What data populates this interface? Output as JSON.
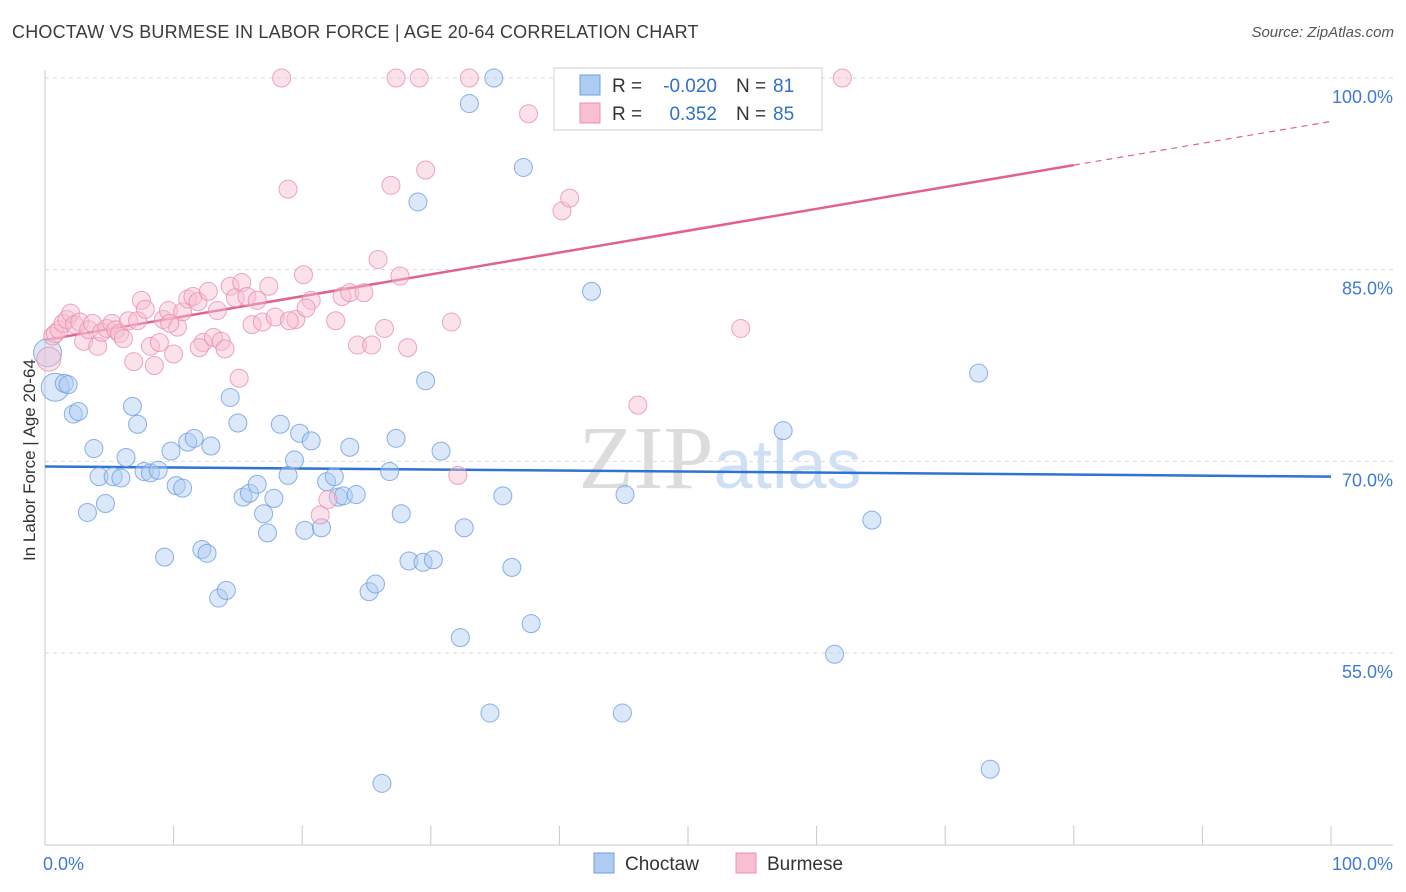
{
  "chart_data": {
    "type": "scatter",
    "title": "CHOCTAW VS BURMESE IN LABOR FORCE | AGE 20-64 CORRELATION CHART",
    "source": "Source: ZipAtlas.com",
    "xlabel": "",
    "ylabel": "In Labor Force | Age 20-64",
    "xlim": [
      0,
      100
    ],
    "ylim": [
      40,
      101
    ],
    "x_tick_labels": [
      "0.0%",
      "100.0%"
    ],
    "y_ticks": [
      55,
      70,
      85,
      100
    ],
    "y_tick_labels": [
      "55.0%",
      "70.0%",
      "85.0%",
      "100.0%"
    ],
    "watermark": "ZIPatlas",
    "legend": {
      "rows": [
        {
          "r_label": "R =",
          "r_value": "-0.020",
          "n_label": "N =",
          "n_value": "81"
        },
        {
          "r_label": "R =",
          "r_value": "0.352",
          "n_label": "N =",
          "n_value": "85"
        }
      ]
    },
    "series": [
      {
        "name": "Choctaw",
        "color": "#6f9ee0",
        "fill": "#aecbf2",
        "line_color": "#2f74d0",
        "trend": {
          "x0": 0,
          "y0": 69.6,
          "x1": 100,
          "y1": 68.8
        },
        "points": [
          [
            0.2,
            78.5
          ],
          [
            0.8,
            75.8
          ],
          [
            1.5,
            76.1
          ],
          [
            1.8,
            76.0
          ],
          [
            2.2,
            73.7
          ],
          [
            2.6,
            73.9
          ],
          [
            3.3,
            66.0
          ],
          [
            3.8,
            71.0
          ],
          [
            4.2,
            68.8
          ],
          [
            4.7,
            66.7
          ],
          [
            5.3,
            68.8
          ],
          [
            5.9,
            68.7
          ],
          [
            6.3,
            70.3
          ],
          [
            6.8,
            74.3
          ],
          [
            7.2,
            72.9
          ],
          [
            7.7,
            69.2
          ],
          [
            8.2,
            69.1
          ],
          [
            8.8,
            69.3
          ],
          [
            9.3,
            62.5
          ],
          [
            9.8,
            70.8
          ],
          [
            10.2,
            68.1
          ],
          [
            10.7,
            67.9
          ],
          [
            11.1,
            71.5
          ],
          [
            11.6,
            71.8
          ],
          [
            12.2,
            63.1
          ],
          [
            12.6,
            62.8
          ],
          [
            12.9,
            71.2
          ],
          [
            13.5,
            59.3
          ],
          [
            14.1,
            59.9
          ],
          [
            14.4,
            75.0
          ],
          [
            15.0,
            73.0
          ],
          [
            15.4,
            67.2
          ],
          [
            15.9,
            67.5
          ],
          [
            16.5,
            68.2
          ],
          [
            17.0,
            65.9
          ],
          [
            17.3,
            64.4
          ],
          [
            17.8,
            67.1
          ],
          [
            18.3,
            72.9
          ],
          [
            18.9,
            68.9
          ],
          [
            19.4,
            70.1
          ],
          [
            19.8,
            72.2
          ],
          [
            20.2,
            64.6
          ],
          [
            20.7,
            71.6
          ],
          [
            21.5,
            64.8
          ],
          [
            21.9,
            68.4
          ],
          [
            22.5,
            68.8
          ],
          [
            22.8,
            67.2
          ],
          [
            23.2,
            67.3
          ],
          [
            23.7,
            71.1
          ],
          [
            24.2,
            67.4
          ],
          [
            25.2,
            59.8
          ],
          [
            25.7,
            60.4
          ],
          [
            26.8,
            69.2
          ],
          [
            27.3,
            71.8
          ],
          [
            27.7,
            65.9
          ],
          [
            28.3,
            62.2
          ],
          [
            29.0,
            90.3
          ],
          [
            29.4,
            62.1
          ],
          [
            29.6,
            76.3
          ],
          [
            30.2,
            62.3
          ],
          [
            30.8,
            70.8
          ],
          [
            32.3,
            56.2
          ],
          [
            32.6,
            64.8
          ],
          [
            33.0,
            98.0
          ],
          [
            34.6,
            50.3
          ],
          [
            34.9,
            100.0
          ],
          [
            35.6,
            67.3
          ],
          [
            36.3,
            61.7
          ],
          [
            37.2,
            93.0
          ],
          [
            37.8,
            57.3
          ],
          [
            42.5,
            83.3
          ],
          [
            44.9,
            50.3
          ],
          [
            45.1,
            67.4
          ],
          [
            52.6,
            100.0
          ],
          [
            56.6,
            100.0
          ],
          [
            57.4,
            72.4
          ],
          [
            61.4,
            54.9
          ],
          [
            64.3,
            65.4
          ],
          [
            72.6,
            76.9
          ],
          [
            73.5,
            45.9
          ],
          [
            26.2,
            44.8
          ]
        ]
      },
      {
        "name": "Burmese",
        "color": "#ea8fae",
        "fill": "#f7bfd0",
        "line_color": "#e2628f",
        "trend": {
          "x0": 0,
          "y0": 79.5,
          "x1": 100,
          "y1": 96.6,
          "solid_until": 80
        },
        "points": [
          [
            0.3,
            78.0
          ],
          [
            0.6,
            79.8
          ],
          [
            0.8,
            80.0
          ],
          [
            1.1,
            80.3
          ],
          [
            1.4,
            80.8
          ],
          [
            1.7,
            81.1
          ],
          [
            2.0,
            81.6
          ],
          [
            2.3,
            80.7
          ],
          [
            2.7,
            80.9
          ],
          [
            3.0,
            79.4
          ],
          [
            3.4,
            80.3
          ],
          [
            3.7,
            80.8
          ],
          [
            4.1,
            79.0
          ],
          [
            4.4,
            80.1
          ],
          [
            4.8,
            80.4
          ],
          [
            5.2,
            80.8
          ],
          [
            5.5,
            80.3
          ],
          [
            5.8,
            80.0
          ],
          [
            6.1,
            79.6
          ],
          [
            6.5,
            81.0
          ],
          [
            6.9,
            77.8
          ],
          [
            7.2,
            81.0
          ],
          [
            7.5,
            82.6
          ],
          [
            7.8,
            81.9
          ],
          [
            8.2,
            79.0
          ],
          [
            8.5,
            77.5
          ],
          [
            8.9,
            79.3
          ],
          [
            9.2,
            81.1
          ],
          [
            9.6,
            81.8
          ],
          [
            10.0,
            78.4
          ],
          [
            10.3,
            80.5
          ],
          [
            10.7,
            81.7
          ],
          [
            11.1,
            82.7
          ],
          [
            11.5,
            82.9
          ],
          [
            11.9,
            82.5
          ],
          [
            12.3,
            79.3
          ],
          [
            12.7,
            83.3
          ],
          [
            13.1,
            79.7
          ],
          [
            13.4,
            81.8
          ],
          [
            13.7,
            79.4
          ],
          [
            14.0,
            78.8
          ],
          [
            14.4,
            83.7
          ],
          [
            14.8,
            82.8
          ],
          [
            15.3,
            84.0
          ],
          [
            15.7,
            82.9
          ],
          [
            16.1,
            80.7
          ],
          [
            16.5,
            82.6
          ],
          [
            16.9,
            80.9
          ],
          [
            17.4,
            83.7
          ],
          [
            17.9,
            81.3
          ],
          [
            18.4,
            100.0
          ],
          [
            18.9,
            91.3
          ],
          [
            19.5,
            81.1
          ],
          [
            20.1,
            84.6
          ],
          [
            20.7,
            82.6
          ],
          [
            21.4,
            65.8
          ],
          [
            22.0,
            67.0
          ],
          [
            22.6,
            81.0
          ],
          [
            23.1,
            82.9
          ],
          [
            23.7,
            83.2
          ],
          [
            24.3,
            79.1
          ],
          [
            24.8,
            83.2
          ],
          [
            25.4,
            79.1
          ],
          [
            25.9,
            85.8
          ],
          [
            26.4,
            80.4
          ],
          [
            26.9,
            91.6
          ],
          [
            27.3,
            100.0
          ],
          [
            27.6,
            84.5
          ],
          [
            28.2,
            78.9
          ],
          [
            29.1,
            100.0
          ],
          [
            29.6,
            92.8
          ],
          [
            31.6,
            80.9
          ],
          [
            32.1,
            68.9
          ],
          [
            33.0,
            100.0
          ],
          [
            37.6,
            97.2
          ],
          [
            40.2,
            89.6
          ],
          [
            40.8,
            90.6
          ],
          [
            46.1,
            74.4
          ],
          [
            54.1,
            80.4
          ],
          [
            62.0,
            100.0
          ],
          [
            19.0,
            81.0
          ],
          [
            20.3,
            82.0
          ],
          [
            15.1,
            76.5
          ],
          [
            9.7,
            80.8
          ],
          [
            12.0,
            78.9
          ]
        ]
      }
    ],
    "legend_bottom": [
      "Choctaw",
      "Burmese"
    ]
  }
}
